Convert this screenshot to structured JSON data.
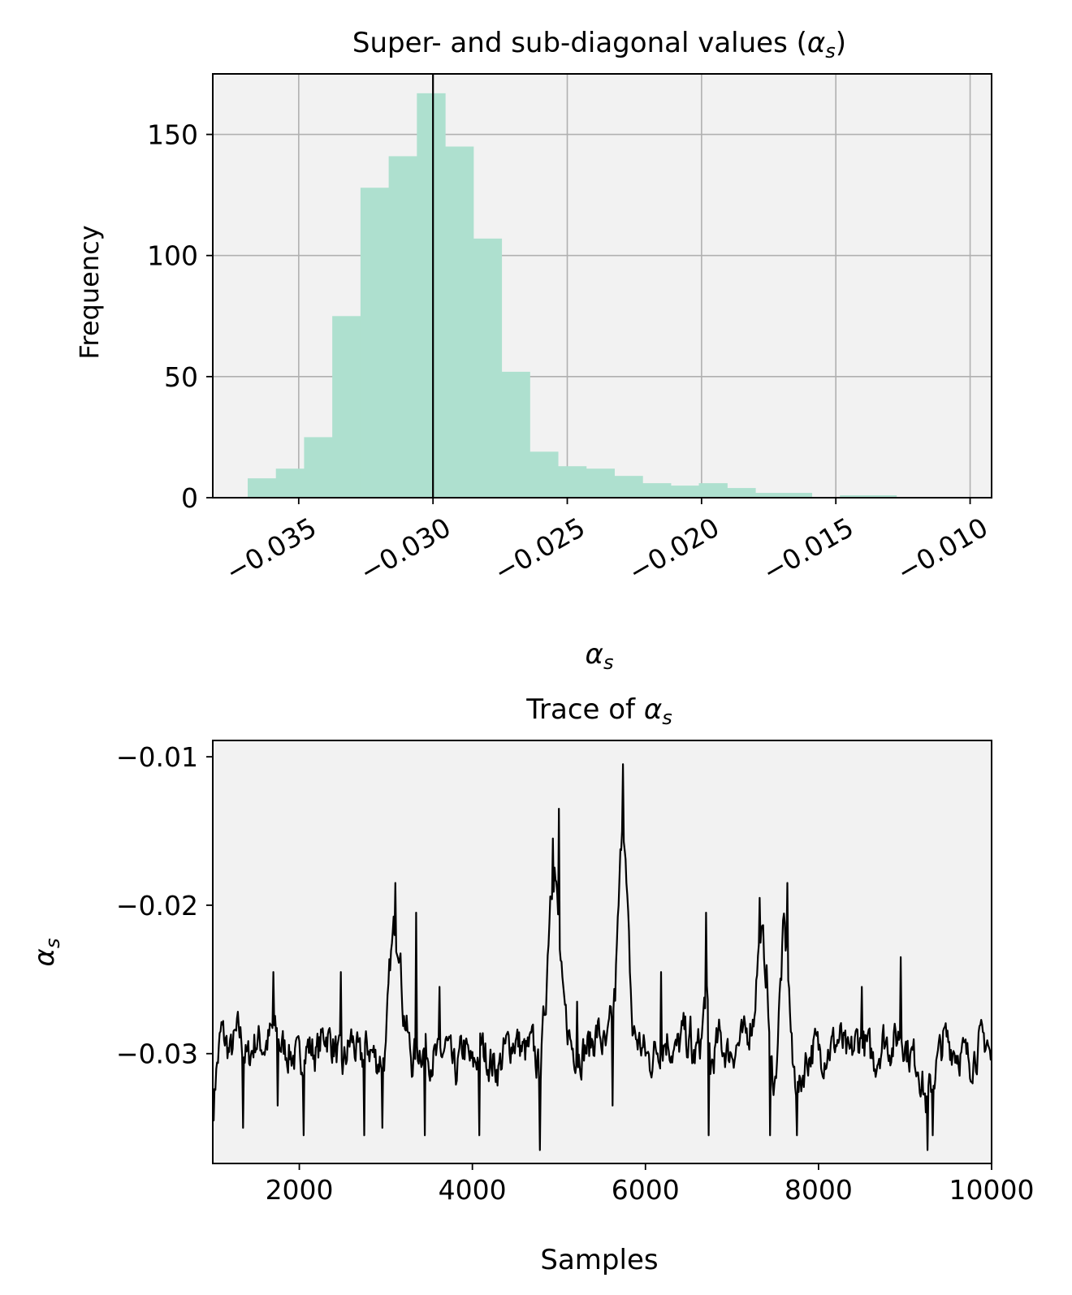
{
  "chart_data": [
    {
      "type": "bar",
      "subtype": "histogram",
      "title_prefix": "Super- and sub-diagonal values (",
      "title_symbol": "α",
      "title_subscript": "s",
      "title_suffix": ")",
      "xlabel_symbol": "α",
      "xlabel_subscript": "s",
      "ylabel": "Frequency",
      "xlim": [
        -0.0382,
        -0.0092
      ],
      "ylim": [
        0,
        175
      ],
      "xticks": [
        -0.035,
        -0.03,
        -0.025,
        -0.02,
        -0.015,
        -0.01
      ],
      "xtick_labels": [
        "−0.035",
        "−0.030",
        "−0.025",
        "−0.020",
        "−0.015",
        "−0.010"
      ],
      "yticks": [
        0,
        50,
        100,
        150
      ],
      "ytick_labels": [
        "0",
        "50",
        "100",
        "150"
      ],
      "grid": true,
      "bin_width": 0.00105,
      "bin_starts": [
        -0.0369,
        -0.03585,
        -0.0348,
        -0.03375,
        -0.0327,
        -0.03165,
        -0.0306,
        -0.02955,
        -0.0285,
        -0.02745,
        -0.0264,
        -0.02535,
        -0.0243,
        -0.02325,
        -0.0222,
        -0.02115,
        -0.0201,
        -0.01905,
        -0.018,
        -0.01695,
        -0.0159,
        -0.01485,
        -0.0138,
        -0.01275
      ],
      "counts": [
        8,
        12,
        25,
        75,
        128,
        141,
        167,
        145,
        107,
        52,
        19,
        13,
        12,
        9,
        6,
        5,
        6,
        4,
        2,
        2,
        0,
        1,
        1,
        0
      ],
      "vline": -0.03,
      "bar_color": "#aee0cf",
      "background": "#f2f2f2"
    },
    {
      "type": "line",
      "title_prefix": "Trace of ",
      "title_symbol": "α",
      "title_subscript": "s",
      "xlabel": "Samples",
      "ylabel_symbol": "α",
      "ylabel_subscript": "s",
      "xlim": [
        1000,
        10000
      ],
      "ylim": [
        -0.0374,
        -0.0089
      ],
      "xticks": [
        2000,
        4000,
        6000,
        8000,
        10000
      ],
      "xtick_labels": [
        "2000",
        "4000",
        "6000",
        "8000",
        "10000"
      ],
      "yticks": [
        -0.03,
        -0.02,
        -0.01
      ],
      "ytick_labels": [
        "−0.03",
        "−0.02",
        "−0.01"
      ],
      "grid": false,
      "line_color": "#000000",
      "background": "#f2f2f2",
      "anchors": [
        [
          1000,
          -0.033
        ],
        [
          1100,
          -0.0285
        ],
        [
          1200,
          -0.03
        ],
        [
          1300,
          -0.0285
        ],
        [
          1400,
          -0.0305
        ],
        [
          1500,
          -0.029
        ],
        [
          1600,
          -0.0295
        ],
        [
          1700,
          -0.0285
        ],
        [
          1800,
          -0.0295
        ],
        [
          1900,
          -0.03
        ],
        [
          2000,
          -0.0305
        ],
        [
          2100,
          -0.0295
        ],
        [
          2200,
          -0.03
        ],
        [
          2300,
          -0.0285
        ],
        [
          2400,
          -0.0295
        ],
        [
          2500,
          -0.031
        ],
        [
          2600,
          -0.029
        ],
        [
          2700,
          -0.0305
        ],
        [
          2800,
          -0.0295
        ],
        [
          2900,
          -0.0305
        ],
        [
          3000,
          -0.03
        ],
        [
          3050,
          -0.024
        ],
        [
          3100,
          -0.0215
        ],
        [
          3150,
          -0.022
        ],
        [
          3200,
          -0.027
        ],
        [
          3300,
          -0.0305
        ],
        [
          3400,
          -0.0295
        ],
        [
          3500,
          -0.03
        ],
        [
          3600,
          -0.0305
        ],
        [
          3700,
          -0.0295
        ],
        [
          3800,
          -0.0315
        ],
        [
          3900,
          -0.0295
        ],
        [
          4000,
          -0.031
        ],
        [
          4100,
          -0.0295
        ],
        [
          4200,
          -0.0305
        ],
        [
          4300,
          -0.031
        ],
        [
          4400,
          -0.0295
        ],
        [
          4500,
          -0.029
        ],
        [
          4600,
          -0.03
        ],
        [
          4700,
          -0.0295
        ],
        [
          4780,
          -0.0315
        ],
        [
          4850,
          -0.026
        ],
        [
          4900,
          -0.019
        ],
        [
          4950,
          -0.017
        ],
        [
          5000,
          -0.022
        ],
        [
          5050,
          -0.027
        ],
        [
          5150,
          -0.0295
        ],
        [
          5250,
          -0.03
        ],
        [
          5350,
          -0.0295
        ],
        [
          5450,
          -0.0285
        ],
        [
          5550,
          -0.03
        ],
        [
          5650,
          -0.026
        ],
        [
          5700,
          -0.019
        ],
        [
          5740,
          -0.0125
        ],
        [
          5780,
          -0.019
        ],
        [
          5850,
          -0.0285
        ],
        [
          5950,
          -0.0295
        ],
        [
          6050,
          -0.0305
        ],
        [
          6150,
          -0.0295
        ],
        [
          6250,
          -0.029
        ],
        [
          6350,
          -0.03
        ],
        [
          6450,
          -0.0285
        ],
        [
          6550,
          -0.0305
        ],
        [
          6650,
          -0.029
        ],
        [
          6700,
          -0.0255
        ],
        [
          6750,
          -0.031
        ],
        [
          6850,
          -0.029
        ],
        [
          6950,
          -0.03
        ],
        [
          7050,
          -0.0295
        ],
        [
          7150,
          -0.029
        ],
        [
          7250,
          -0.0275
        ],
        [
          7300,
          -0.0235
        ],
        [
          7350,
          -0.0225
        ],
        [
          7400,
          -0.0245
        ],
        [
          7450,
          -0.031
        ],
        [
          7500,
          -0.032
        ],
        [
          7550,
          -0.0265
        ],
        [
          7600,
          -0.0215
        ],
        [
          7650,
          -0.0245
        ],
        [
          7700,
          -0.031
        ],
        [
          7780,
          -0.0325
        ],
        [
          7850,
          -0.0305
        ],
        [
          7950,
          -0.0295
        ],
        [
          8050,
          -0.03
        ],
        [
          8150,
          -0.0295
        ],
        [
          8250,
          -0.029
        ],
        [
          8350,
          -0.0305
        ],
        [
          8450,
          -0.029
        ],
        [
          8550,
          -0.0295
        ],
        [
          8650,
          -0.0305
        ],
        [
          8750,
          -0.029
        ],
        [
          8850,
          -0.0295
        ],
        [
          8950,
          -0.0285
        ],
        [
          9050,
          -0.03
        ],
        [
          9150,
          -0.0305
        ],
        [
          9250,
          -0.0335
        ],
        [
          9350,
          -0.031
        ],
        [
          9450,
          -0.029
        ],
        [
          9550,
          -0.0295
        ],
        [
          9650,
          -0.03
        ],
        [
          9750,
          -0.0305
        ],
        [
          9850,
          -0.0295
        ],
        [
          9950,
          -0.029
        ],
        [
          10000,
          -0.031
        ]
      ],
      "spikes": [
        [
          1010,
          -0.0345
        ],
        [
          1350,
          -0.035
        ],
        [
          1700,
          -0.0245
        ],
        [
          1750,
          -0.0335
        ],
        [
          2050,
          -0.0355
        ],
        [
          2480,
          -0.0245
        ],
        [
          2750,
          -0.0355
        ],
        [
          2960,
          -0.035
        ],
        [
          3110,
          -0.0185
        ],
        [
          3350,
          -0.0205
        ],
        [
          3450,
          -0.0355
        ],
        [
          3620,
          -0.0255
        ],
        [
          4080,
          -0.0355
        ],
        [
          4780,
          -0.0365
        ],
        [
          4930,
          -0.0155
        ],
        [
          5000,
          -0.0135
        ],
        [
          5210,
          -0.0265
        ],
        [
          5620,
          -0.0335
        ],
        [
          5740,
          -0.0105
        ],
        [
          6180,
          -0.0245
        ],
        [
          6520,
          -0.0275
        ],
        [
          6730,
          -0.0355
        ],
        [
          6700,
          -0.0205
        ],
        [
          7320,
          -0.0195
        ],
        [
          7440,
          -0.0355
        ],
        [
          7640,
          -0.0185
        ],
        [
          7750,
          -0.0355
        ],
        [
          8500,
          -0.0255
        ],
        [
          8950,
          -0.0235
        ],
        [
          9260,
          -0.0365
        ],
        [
          9320,
          -0.0355
        ]
      ]
    }
  ]
}
